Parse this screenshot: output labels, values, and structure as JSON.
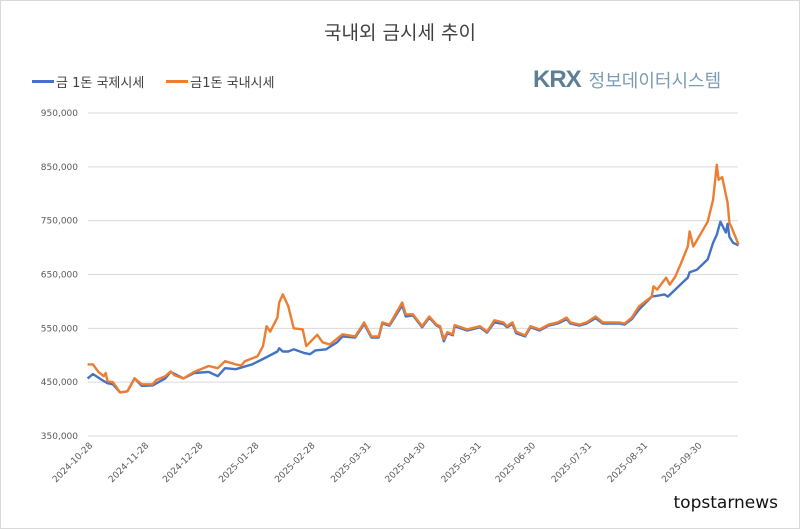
{
  "chart_data": {
    "type": "line",
    "title": "국내외 금시세 추이",
    "xlabel": "",
    "ylabel": "",
    "ylim": [
      350000,
      950000
    ],
    "yticks": [
      "350,000",
      "450,000",
      "550,000",
      "650,000",
      "750,000",
      "850,000",
      "950,000"
    ],
    "xticks": [
      "2024-10-28",
      "2024-11-28",
      "2024-12-28",
      "2025-01-28",
      "2025-02-28",
      "2025-03-31",
      "2025-04-30",
      "2025-05-31",
      "2025-06-30",
      "2025-07-31",
      "2025-08-31",
      "2025-09-30"
    ],
    "grid": true,
    "legend_position": "top-left",
    "series": [
      {
        "name": "금 1돈 국제시세",
        "color": "#4472C4",
        "points": [
          [
            "2024-10-25",
            457000
          ],
          [
            "2024-10-28",
            465000
          ],
          [
            "2024-11-03",
            452000
          ],
          [
            "2024-11-05",
            448000
          ],
          [
            "2024-11-08",
            446000
          ],
          [
            "2024-11-12",
            431000
          ],
          [
            "2024-11-16",
            433000
          ],
          [
            "2024-11-20",
            457000
          ],
          [
            "2024-11-24",
            443000
          ],
          [
            "2024-11-30",
            444000
          ],
          [
            "2024-12-07",
            457000
          ],
          [
            "2024-12-10",
            469000
          ],
          [
            "2024-12-17",
            457000
          ],
          [
            "2024-12-23",
            467000
          ],
          [
            "2024-12-31",
            469000
          ],
          [
            "2025-01-05",
            461000
          ],
          [
            "2025-01-09",
            476000
          ],
          [
            "2025-01-15",
            474000
          ],
          [
            "2025-01-24",
            483000
          ],
          [
            "2025-01-30",
            493000
          ],
          [
            "2025-02-07",
            507000
          ],
          [
            "2025-02-08",
            513000
          ],
          [
            "2025-02-10",
            507000
          ],
          [
            "2025-02-13",
            507000
          ],
          [
            "2025-02-16",
            511000
          ],
          [
            "2025-02-22",
            504000
          ],
          [
            "2025-02-25",
            502000
          ],
          [
            "2025-02-28",
            509000
          ],
          [
            "2025-03-06",
            511000
          ],
          [
            "2025-03-12",
            524000
          ],
          [
            "2025-03-15",
            535000
          ],
          [
            "2025-03-22",
            533000
          ],
          [
            "2025-03-27",
            558000
          ],
          [
            "2025-03-31",
            533000
          ],
          [
            "2025-04-04",
            533000
          ],
          [
            "2025-04-06",
            559000
          ],
          [
            "2025-04-10",
            555000
          ],
          [
            "2025-04-17",
            593000
          ],
          [
            "2025-04-19",
            572000
          ],
          [
            "2025-04-23",
            574000
          ],
          [
            "2025-04-28",
            552000
          ],
          [
            "2025-05-02",
            570000
          ],
          [
            "2025-05-06",
            555000
          ],
          [
            "2025-05-08",
            552000
          ],
          [
            "2025-05-10",
            526000
          ],
          [
            "2025-05-12",
            541000
          ],
          [
            "2025-05-15",
            537000
          ],
          [
            "2025-05-16",
            554000
          ],
          [
            "2025-05-23",
            546000
          ],
          [
            "2025-05-30",
            552000
          ],
          [
            "2025-06-03",
            542000
          ],
          [
            "2025-06-07",
            561000
          ],
          [
            "2025-06-12",
            558000
          ],
          [
            "2025-06-14",
            552000
          ],
          [
            "2025-06-17",
            558000
          ],
          [
            "2025-06-19",
            541000
          ],
          [
            "2025-06-24",
            535000
          ],
          [
            "2025-06-27",
            552000
          ],
          [
            "2025-07-02",
            546000
          ],
          [
            "2025-07-07",
            555000
          ],
          [
            "2025-07-12",
            559000
          ],
          [
            "2025-07-17",
            567000
          ],
          [
            "2025-07-19",
            559000
          ],
          [
            "2025-07-24",
            555000
          ],
          [
            "2025-07-28",
            559000
          ],
          [
            "2025-08-02",
            569000
          ],
          [
            "2025-08-06",
            559000
          ],
          [
            "2025-08-15",
            559000
          ],
          [
            "2025-08-18",
            557000
          ],
          [
            "2025-08-22",
            567000
          ],
          [
            "2025-08-26",
            585000
          ],
          [
            "2025-09-02",
            609000
          ],
          [
            "2025-09-06",
            611000
          ],
          [
            "2025-09-09",
            613000
          ],
          [
            "2025-09-11",
            609000
          ],
          [
            "2025-09-15",
            622000
          ],
          [
            "2025-09-19",
            635000
          ],
          [
            "2025-09-22",
            644000
          ],
          [
            "2025-09-23",
            654000
          ],
          [
            "2025-09-27",
            659000
          ],
          [
            "2025-10-03",
            678000
          ],
          [
            "2025-10-06",
            709000
          ],
          [
            "2025-10-08",
            724000
          ],
          [
            "2025-10-10",
            748000
          ],
          [
            "2025-10-13",
            728000
          ],
          [
            "2025-10-14",
            744000
          ],
          [
            "2025-10-15",
            720000
          ],
          [
            "2025-10-17",
            709000
          ],
          [
            "2025-10-20",
            704000
          ]
        ]
      },
      {
        "name": "금1돈 국내시세",
        "color": "#ED7D31",
        "points": [
          [
            "2024-10-25",
            483000
          ],
          [
            "2024-10-28",
            483000
          ],
          [
            "2024-10-31",
            469000
          ],
          [
            "2024-11-03",
            461000
          ],
          [
            "2024-11-04",
            467000
          ],
          [
            "2024-11-05",
            452000
          ],
          [
            "2024-11-08",
            450000
          ],
          [
            "2024-11-12",
            431000
          ],
          [
            "2024-11-16",
            433000
          ],
          [
            "2024-11-20",
            457000
          ],
          [
            "2024-11-24",
            446000
          ],
          [
            "2024-11-30",
            446000
          ],
          [
            "2024-12-02",
            454000
          ],
          [
            "2024-12-07",
            461000
          ],
          [
            "2024-12-10",
            470000
          ],
          [
            "2024-12-12",
            463000
          ],
          [
            "2024-12-17",
            457000
          ],
          [
            "2024-12-23",
            469000
          ],
          [
            "2024-12-31",
            480000
          ],
          [
            "2025-01-05",
            476000
          ],
          [
            "2025-01-09",
            489000
          ],
          [
            "2025-01-15",
            483000
          ],
          [
            "2025-01-18",
            481000
          ],
          [
            "2025-01-20",
            489000
          ],
          [
            "2025-01-27",
            498000
          ],
          [
            "2025-01-30",
            517000
          ],
          [
            "2025-02-01",
            554000
          ],
          [
            "2025-02-03",
            544000
          ],
          [
            "2025-02-07",
            570000
          ],
          [
            "2025-02-08",
            598000
          ],
          [
            "2025-02-10",
            613000
          ],
          [
            "2025-02-13",
            591000
          ],
          [
            "2025-02-16",
            550000
          ],
          [
            "2025-02-21",
            548000
          ],
          [
            "2025-02-23",
            517000
          ],
          [
            "2025-03-01",
            538000
          ],
          [
            "2025-03-04",
            524000
          ],
          [
            "2025-03-08",
            520000
          ],
          [
            "2025-03-15",
            539000
          ],
          [
            "2025-03-22",
            535000
          ],
          [
            "2025-03-27",
            561000
          ],
          [
            "2025-03-31",
            535000
          ],
          [
            "2025-04-04",
            535000
          ],
          [
            "2025-04-06",
            561000
          ],
          [
            "2025-04-10",
            557000
          ],
          [
            "2025-04-17",
            598000
          ],
          [
            "2025-04-19",
            576000
          ],
          [
            "2025-04-23",
            576000
          ],
          [
            "2025-04-28",
            554000
          ],
          [
            "2025-05-02",
            572000
          ],
          [
            "2025-05-06",
            557000
          ],
          [
            "2025-05-08",
            554000
          ],
          [
            "2025-05-10",
            530000
          ],
          [
            "2025-05-12",
            543000
          ],
          [
            "2025-05-15",
            539000
          ],
          [
            "2025-05-16",
            556000
          ],
          [
            "2025-05-23",
            548000
          ],
          [
            "2025-05-30",
            554000
          ],
          [
            "2025-06-03",
            544000
          ],
          [
            "2025-06-07",
            565000
          ],
          [
            "2025-06-12",
            561000
          ],
          [
            "2025-06-14",
            554000
          ],
          [
            "2025-06-17",
            561000
          ],
          [
            "2025-06-19",
            544000
          ],
          [
            "2025-06-24",
            537000
          ],
          [
            "2025-06-27",
            554000
          ],
          [
            "2025-07-02",
            548000
          ],
          [
            "2025-07-07",
            557000
          ],
          [
            "2025-07-12",
            561000
          ],
          [
            "2025-07-17",
            570000
          ],
          [
            "2025-07-19",
            561000
          ],
          [
            "2025-07-24",
            557000
          ],
          [
            "2025-07-28",
            561000
          ],
          [
            "2025-08-02",
            572000
          ],
          [
            "2025-08-06",
            561000
          ],
          [
            "2025-08-15",
            561000
          ],
          [
            "2025-08-18",
            559000
          ],
          [
            "2025-08-22",
            570000
          ],
          [
            "2025-08-26",
            591000
          ],
          [
            "2025-09-02",
            609000
          ],
          [
            "2025-09-03",
            628000
          ],
          [
            "2025-09-05",
            622000
          ],
          [
            "2025-09-10",
            644000
          ],
          [
            "2025-09-12",
            631000
          ],
          [
            "2025-09-15",
            646000
          ],
          [
            "2025-09-18",
            669000
          ],
          [
            "2025-09-22",
            702000
          ],
          [
            "2025-09-23",
            730000
          ],
          [
            "2025-09-25",
            702000
          ],
          [
            "2025-10-03",
            748000
          ],
          [
            "2025-10-06",
            789000
          ],
          [
            "2025-10-08",
            854000
          ],
          [
            "2025-10-09",
            826000
          ],
          [
            "2025-10-11",
            831000
          ],
          [
            "2025-10-14",
            783000
          ],
          [
            "2025-10-15",
            746000
          ],
          [
            "2025-10-16",
            739000
          ],
          [
            "2025-10-20",
            706000
          ]
        ]
      }
    ]
  },
  "logo": {
    "brand": "KRX",
    "subtitle": "정보데이터시스템"
  },
  "watermark": "topstarnews"
}
